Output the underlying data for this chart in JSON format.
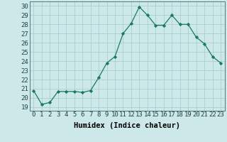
{
  "x": [
    0,
    1,
    2,
    3,
    4,
    5,
    6,
    7,
    8,
    9,
    10,
    11,
    12,
    13,
    14,
    15,
    16,
    17,
    18,
    19,
    20,
    21,
    22,
    23
  ],
  "y": [
    20.8,
    19.3,
    19.5,
    20.7,
    20.7,
    20.7,
    20.6,
    20.8,
    22.2,
    23.8,
    24.5,
    27.0,
    28.1,
    29.9,
    29.0,
    27.9,
    27.9,
    29.0,
    28.0,
    28.0,
    26.6,
    25.9,
    24.5,
    23.8
  ],
  "line_color": "#1a7a5e",
  "marker": "D",
  "marker_size": 2.2,
  "bg_color": "#cce8e8",
  "grid_color": "#aacfcf",
  "xlabel": "Humidex (Indice chaleur)",
  "ylabel_ticks": [
    19,
    20,
    21,
    22,
    23,
    24,
    25,
    26,
    27,
    28,
    29,
    30
  ],
  "ylim": [
    18.6,
    30.5
  ],
  "xlim": [
    -0.5,
    23.5
  ],
  "xlabel_fontsize": 7.5,
  "tick_fontsize": 6.5
}
